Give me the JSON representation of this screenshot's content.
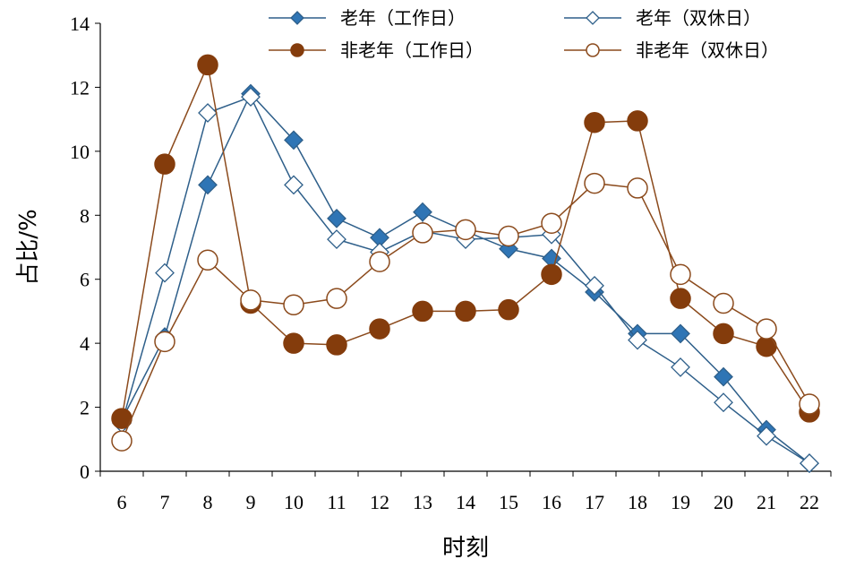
{
  "chart_data": {
    "type": "line",
    "title": "",
    "xlabel": "时刻",
    "ylabel": "占比/%",
    "ylim": [
      0,
      14
    ],
    "yticks": [
      0,
      2,
      4,
      6,
      8,
      10,
      12,
      14
    ],
    "categories": [
      "6",
      "7",
      "8",
      "9",
      "10",
      "11",
      "12",
      "13",
      "14",
      "15",
      "16",
      "17",
      "18",
      "19",
      "20",
      "21",
      "22"
    ],
    "legend_position": "top-right",
    "grid": false,
    "series": [
      {
        "name": "老年（工作日）",
        "marker": "diamond",
        "filled": true,
        "line_color": "#2e5f8a",
        "marker_color": "#2f75b5",
        "values": [
          1.6,
          4.2,
          8.95,
          11.8,
          10.35,
          7.9,
          7.3,
          8.1,
          7.5,
          6.95,
          6.65,
          5.6,
          4.3,
          4.3,
          2.95,
          1.3,
          0.25
        ]
      },
      {
        "name": "老年（双休日）",
        "marker": "diamond",
        "filled": false,
        "line_color": "#2e5f8a",
        "marker_color": "#2e5f8a",
        "values": [
          1.5,
          6.2,
          11.2,
          11.7,
          8.95,
          7.25,
          6.85,
          7.5,
          7.25,
          7.3,
          7.4,
          5.8,
          4.1,
          3.25,
          2.15,
          1.1,
          0.25
        ]
      },
      {
        "name": "非老年（工作日）",
        "marker": "circle",
        "filled": true,
        "line_color": "#8b4a1c",
        "marker_color": "#843c0c",
        "values": [
          1.65,
          9.6,
          12.7,
          5.25,
          4.0,
          3.95,
          4.45,
          5.0,
          5.0,
          5.05,
          6.15,
          10.9,
          10.95,
          5.4,
          4.3,
          3.9,
          1.85
        ]
      },
      {
        "name": "非老年（双休日）",
        "marker": "circle",
        "filled": false,
        "line_color": "#8b4a1c",
        "marker_color": "#8b4a1c",
        "values": [
          0.95,
          4.05,
          6.6,
          5.35,
          5.2,
          5.4,
          6.55,
          7.45,
          7.55,
          7.35,
          7.75,
          9.0,
          8.85,
          6.15,
          5.25,
          4.45,
          2.1
        ]
      }
    ]
  }
}
